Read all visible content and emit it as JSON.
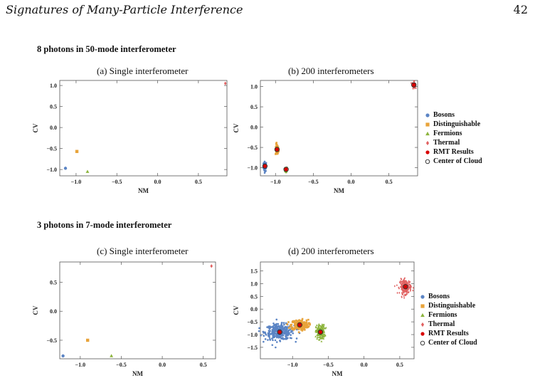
{
  "header": {
    "title": "Signatures of Many-Particle Interference",
    "page_number": "42"
  },
  "sections": [
    {
      "label": "8 photons in 50-mode interferometer"
    },
    {
      "label": "3 photons in 7-mode interferometer"
    }
  ],
  "legend": {
    "items": [
      {
        "label": "Bosons",
        "color": "#5b84c4",
        "marker": "circle"
      },
      {
        "label": "Distinguishable",
        "color": "#e8a33a",
        "marker": "square"
      },
      {
        "label": "Fermions",
        "color": "#8cb43c",
        "marker": "triangle"
      },
      {
        "label": "Thermal",
        "color": "#e06060",
        "marker": "diamond"
      },
      {
        "label": "RMT Results",
        "color": "#d80000",
        "marker": "filled-circle"
      },
      {
        "label": "Center of Cloud",
        "color": "#222222",
        "marker": "open-circle"
      }
    ]
  },
  "chart_data": [
    {
      "type": "scatter",
      "title": "(a) Single interferometer",
      "xlabel": "NM",
      "ylabel": "CV",
      "xlim": [
        -1.2,
        0.85
      ],
      "ylim": [
        -1.15,
        1.12
      ],
      "xticks": [
        -1.0,
        -0.5,
        0.0,
        0.5
      ],
      "yticks": [
        -1.0,
        -0.5,
        0.0,
        0.5,
        1.0
      ],
      "xticklabels": [
        "−1.0",
        "−0.5",
        "0.0",
        "0.5"
      ],
      "yticklabels": [
        "−1.0",
        "−0.5",
        "0.0",
        "0.5",
        "1.0"
      ],
      "series": [
        {
          "name": "Bosons",
          "points": [
            [
              -1.13,
              -0.97
            ]
          ]
        },
        {
          "name": "Distinguishable",
          "points": [
            [
              -0.99,
              -0.57
            ]
          ]
        },
        {
          "name": "Fermions",
          "points": [
            [
              -0.86,
              -1.05
            ]
          ]
        },
        {
          "name": "Thermal",
          "points": [
            [
              0.83,
              1.05
            ]
          ]
        }
      ]
    },
    {
      "type": "scatter",
      "title": "(b) 200 interferometers",
      "xlabel": "NM",
      "ylabel": "CV",
      "xlim": [
        -1.2,
        0.88
      ],
      "ylim": [
        -1.2,
        1.15
      ],
      "xticks": [
        -1.0,
        -0.5,
        0.0,
        0.5
      ],
      "yticks": [
        -1.0,
        -0.5,
        0.0,
        0.5,
        1.0
      ],
      "xticklabels": [
        "−1.0",
        "−0.5",
        "0.0",
        "0.5"
      ],
      "yticklabels": [
        "−1.0",
        "−0.5",
        "0.0",
        "0.5",
        "1.0"
      ],
      "clouds": [
        {
          "series": "Bosons",
          "center": [
            -1.14,
            -0.97
          ],
          "spread": [
            0.01,
            0.06
          ],
          "n": 60
        },
        {
          "series": "Distinguishable",
          "center": [
            -0.98,
            -0.56
          ],
          "spread": [
            0.01,
            0.07
          ],
          "n": 60
        },
        {
          "series": "Fermions",
          "center": [
            -0.86,
            -1.05
          ],
          "spread": [
            0.008,
            0.04
          ],
          "n": 50
        },
        {
          "series": "Thermal",
          "center": [
            0.83,
            1.04
          ],
          "spread": [
            0.01,
            0.04
          ],
          "n": 50
        }
      ],
      "rmt": [
        [
          -1.14,
          -0.96
        ],
        [
          -0.98,
          -0.55
        ],
        [
          -0.86,
          -1.04
        ],
        [
          0.83,
          1.04
        ]
      ]
    },
    {
      "type": "scatter",
      "title": "(c) Single interferometer",
      "xlabel": "NM",
      "ylabel": "CV",
      "xlim": [
        -1.25,
        0.65
      ],
      "ylim": [
        -0.82,
        0.85
      ],
      "xticks": [
        -1.0,
        -0.5,
        0.0,
        0.5
      ],
      "yticks": [
        -0.5,
        0.0,
        0.5
      ],
      "xticklabels": [
        "−1.0",
        "−0.5",
        "0.0",
        "0.5"
      ],
      "yticklabels": [
        "−0.5",
        "0.0",
        "0.5"
      ],
      "series": [
        {
          "name": "Bosons",
          "points": [
            [
              -1.21,
              -0.77
            ]
          ]
        },
        {
          "name": "Distinguishable",
          "points": [
            [
              -0.91,
              -0.5
            ]
          ]
        },
        {
          "name": "Fermions",
          "points": [
            [
              -0.62,
              -0.77
            ]
          ]
        },
        {
          "name": "Thermal",
          "points": [
            [
              0.6,
              0.78
            ]
          ]
        }
      ]
    },
    {
      "type": "scatter",
      "title": "(d) 200 interferometers",
      "xlabel": "NM",
      "ylabel": "CV",
      "xlim": [
        -1.45,
        0.7
      ],
      "ylim": [
        -1.95,
        1.85
      ],
      "xticks": [
        -1.0,
        -0.5,
        0.0,
        0.5
      ],
      "yticks": [
        -1.5,
        -1.0,
        -0.5,
        0.0,
        0.5,
        1.0,
        1.5
      ],
      "xticklabels": [
        "−1.0",
        "−0.5",
        "0.0",
        "0.5"
      ],
      "yticklabels": [
        "−1.5",
        "−1.0",
        "−0.5",
        "0.0",
        "0.5",
        "1.0",
        "1.5"
      ],
      "clouds": [
        {
          "series": "Bosons",
          "center": [
            -1.18,
            -0.9
          ],
          "spread": [
            0.1,
            0.15
          ],
          "n": 320
        },
        {
          "series": "Distinguishable",
          "center": [
            -0.9,
            -0.62
          ],
          "spread": [
            0.06,
            0.1
          ],
          "n": 240
        },
        {
          "series": "Fermions",
          "center": [
            -0.61,
            -0.9
          ],
          "spread": [
            0.03,
            0.14
          ],
          "n": 200
        },
        {
          "series": "Thermal",
          "center": [
            0.58,
            0.88
          ],
          "spread": [
            0.04,
            0.14
          ],
          "n": 200
        }
      ],
      "rmt": [
        [
          -1.18,
          -0.9
        ],
        [
          -0.9,
          -0.62
        ],
        [
          -0.61,
          -0.9
        ],
        [
          0.58,
          0.88
        ]
      ]
    }
  ]
}
